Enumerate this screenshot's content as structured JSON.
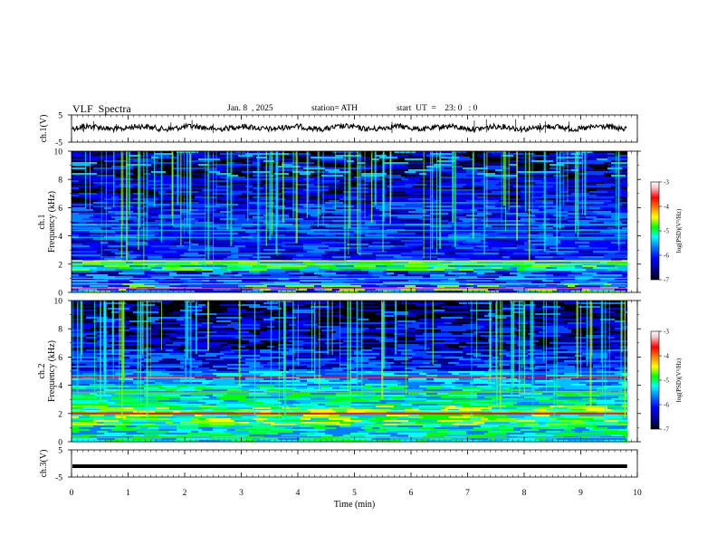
{
  "header": {
    "title": "VLF  Spectra",
    "date": "Jan. 8  , 2025",
    "station": "station= ATH",
    "start": "start  UT  =    23: 0   : 0"
  },
  "chart_data": [
    {
      "type": "line",
      "panel": "ch1-waveform",
      "ylabel": "ch.1(V)",
      "ylim": [
        -5,
        5
      ],
      "yticks": [
        "5",
        "-5"
      ],
      "xlim": [
        0,
        10
      ],
      "trace_level_v": 0.3
    },
    {
      "type": "heatmap",
      "panel": "ch1-spectrogram",
      "ylabel_channel": "ch.1",
      "ylabel": "Frequency  (kHz)",
      "ylim": [
        0,
        10
      ],
      "yticks": [
        "0",
        "2",
        "4",
        "6",
        "8",
        "10"
      ],
      "xlim": [
        0,
        10
      ],
      "colorbar": {
        "label": "log(PSD)(V²/Hz)",
        "ticks": [
          "-3",
          "-4",
          "-5",
          "-6",
          "-7"
        ],
        "range": [
          -7,
          -3
        ]
      },
      "colorscale": [
        "#000000",
        "#00008b",
        "#0000ff",
        "#0080ff",
        "#00ffff",
        "#00ff00",
        "#ffff00",
        "#ff8000",
        "#ff0000",
        "#ffc0c0",
        "#ffffff"
      ]
    },
    {
      "type": "heatmap",
      "panel": "ch2-spectrogram",
      "ylabel_channel": "ch.2",
      "ylabel": "Frequency  (kHz)",
      "ylim": [
        0,
        10
      ],
      "yticks": [
        "0",
        "2",
        "4",
        "6",
        "8",
        "10"
      ],
      "xlim": [
        0,
        10
      ],
      "colorbar": {
        "label": "log(PSD)(V²/Hz)",
        "ticks": [
          "-3",
          "-4",
          "-5",
          "-6",
          "-7"
        ],
        "range": [
          -7,
          -3
        ]
      }
    },
    {
      "type": "line",
      "panel": "ch3-waveform",
      "ylabel": "ch.3(V)",
      "ylim": [
        -5,
        5
      ],
      "yticks": [
        "5",
        "-5"
      ],
      "xlim": [
        0,
        10
      ],
      "trace_level_v": -1.0
    }
  ],
  "xaxis": {
    "label": "Time  (min)",
    "ticks": [
      "0",
      "1",
      "2",
      "3",
      "4",
      "5",
      "6",
      "7",
      "8",
      "9",
      "10"
    ]
  }
}
